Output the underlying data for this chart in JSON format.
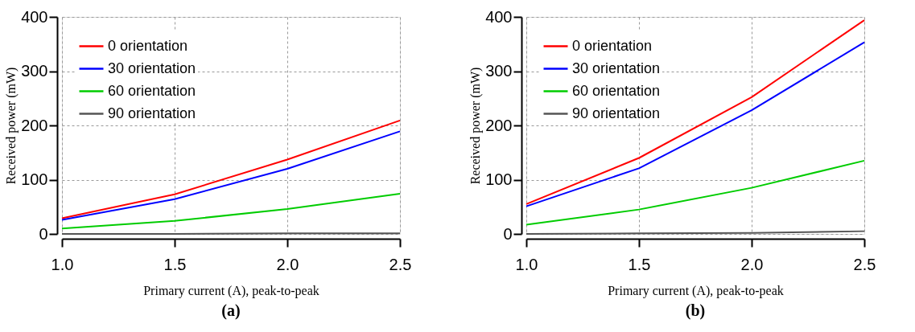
{
  "chart_data": [
    {
      "type": "line",
      "xlabel": "Primary current (A), peak-to-peak",
      "ylabel": "Received power (mW)",
      "annotations": [
        "(a)"
      ],
      "x": [
        1.0,
        1.5,
        2.0,
        2.5
      ],
      "xlim": [
        1.0,
        2.5
      ],
      "xticks": [
        {
          "value": 1.0,
          "label": "1.0"
        },
        {
          "value": 1.5,
          "label": "1.5"
        },
        {
          "value": 2.0,
          "label": "2.0"
        },
        {
          "value": 2.5,
          "label": "2.5"
        }
      ],
      "ylim": [
        0,
        400
      ],
      "yticks": [
        0,
        100,
        200,
        300,
        400
      ],
      "grid": true,
      "legend": "top left",
      "series": [
        {
          "name": "0 orientation",
          "color": "#ff0000",
          "values": [
            29,
            73,
            137,
            209
          ]
        },
        {
          "name": "30 orientation",
          "color": "#0000ff",
          "values": [
            26,
            64,
            120,
            189
          ]
        },
        {
          "name": "60 orientation",
          "color": "#00cc00",
          "values": [
            10,
            24,
            46,
            74
          ]
        },
        {
          "name": "90 orientation",
          "color": "#555555",
          "values": [
            0,
            0,
            1,
            1
          ]
        }
      ]
    },
    {
      "type": "line",
      "xlabel": "Primary current (A), peak-to-peak",
      "ylabel": "Received power (mW)",
      "annotations": [
        "(b)"
      ],
      "x": [
        1.0,
        1.5,
        2.0,
        2.5
      ],
      "xlim": [
        1.0,
        2.5
      ],
      "xticks": [
        {
          "value": 1.0,
          "label": "1.0"
        },
        {
          "value": 1.5,
          "label": "1.5"
        },
        {
          "value": 2.0,
          "label": "2.0"
        },
        {
          "value": 2.5,
          "label": "2.5"
        }
      ],
      "ylim": [
        0,
        400
      ],
      "yticks": [
        0,
        100,
        200,
        300,
        400
      ],
      "grid": true,
      "legend": "top left",
      "series": [
        {
          "name": "0 orientation",
          "color": "#ff0000",
          "values": [
            55,
            140,
            252,
            394
          ]
        },
        {
          "name": "30 orientation",
          "color": "#0000ff",
          "values": [
            51,
            121,
            228,
            353
          ]
        },
        {
          "name": "60 orientation",
          "color": "#00cc00",
          "values": [
            17,
            45,
            85,
            135
          ]
        },
        {
          "name": "90 orientation",
          "color": "#555555",
          "values": [
            0,
            1,
            2,
            5
          ]
        }
      ]
    }
  ]
}
